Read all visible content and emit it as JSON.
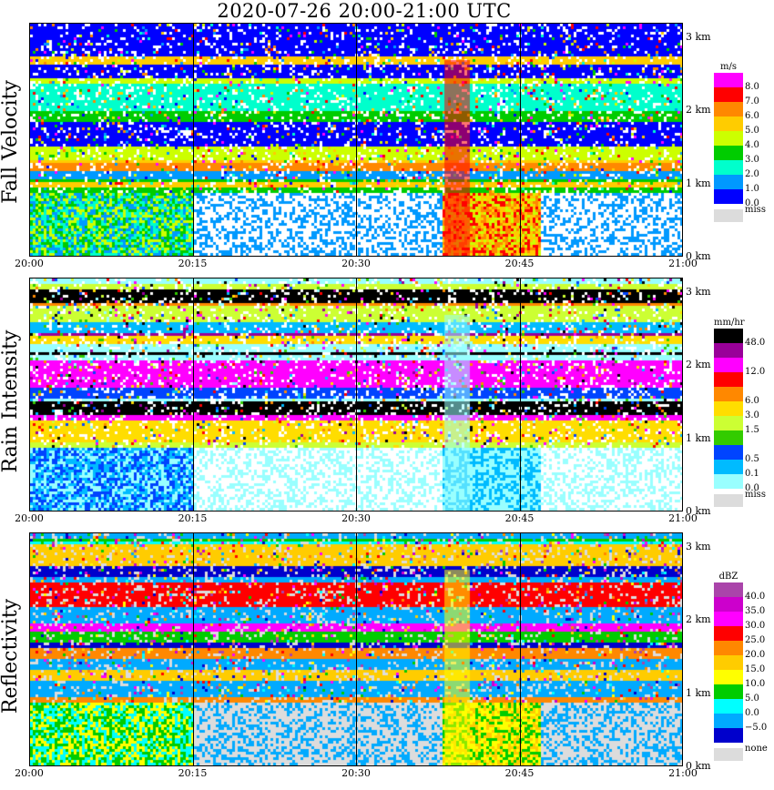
{
  "title": "2020-07-26   20:00-21:00 UTC",
  "x_ticks": [
    "20:00",
    "20:15",
    "20:30",
    "20:45",
    "21:00"
  ],
  "y_ticks": [
    "0 km",
    "1 km",
    "2 km",
    "3 km"
  ],
  "colors": {
    "miss": "#dcdcdc",
    "grid": "#000000"
  },
  "chart_data": [
    {
      "type": "heatmap",
      "title": "Fall Velocity",
      "unit": "m/s",
      "xlim": [
        "20:00",
        "21:00"
      ],
      "ylim": [
        0,
        3.2
      ],
      "legend": {
        "colors": [
          "#ff00ff",
          "#ff0000",
          "#ff8800",
          "#ffcc00",
          "#ccff00",
          "#00cc00",
          "#00ffcc",
          "#0099ff",
          "#0000ff"
        ],
        "labels": [
          "8.0",
          "7.0",
          "6.0",
          "5.0",
          "4.0",
          "3.0",
          "2.0",
          "1.0",
          "0.0"
        ],
        "miss_label": "miss"
      }
    },
    {
      "type": "heatmap",
      "title": "Rain Intensity",
      "unit": "mm/hr",
      "xlim": [
        "20:00",
        "21:00"
      ],
      "ylim": [
        0,
        3.2
      ],
      "legend": {
        "colors": [
          "#000000",
          "#990099",
          "#ff00ff",
          "#ff0000",
          "#ff8800",
          "#ffdd00",
          "#ccff33",
          "#33cc00",
          "#0044ff",
          "#00bbff",
          "#99ffff"
        ],
        "labels": [
          "48.0",
          "",
          "12.0",
          "",
          "6.0",
          "3.0",
          "1.5",
          "",
          "0.5",
          "0.1",
          "0.0"
        ],
        "miss_label": "miss"
      }
    },
    {
      "type": "heatmap",
      "title": "Reflectivity",
      "unit": "dBZ",
      "xlim": [
        "20:00",
        "21:00"
      ],
      "ylim": [
        0,
        3.2
      ],
      "legend": {
        "colors": [
          "#aa44aa",
          "#cc00cc",
          "#ff00ff",
          "#ff0000",
          "#ff8800",
          "#ffcc00",
          "#ffff00",
          "#00cc00",
          "#00ffff",
          "#00aaff",
          "#0000cc"
        ],
        "labels": [
          "40.0",
          "35.0",
          "30.0",
          "25.0",
          "20.0",
          "15.0",
          "10.0",
          "5.0",
          "0.0",
          "−5.0",
          ""
        ],
        "miss_label": "none"
      }
    }
  ]
}
